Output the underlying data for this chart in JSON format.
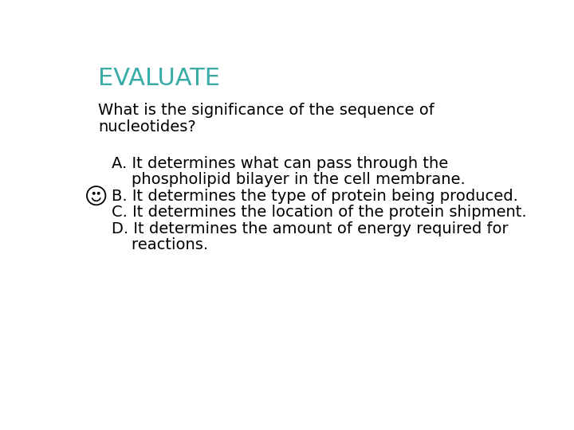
{
  "title": "EVALUATE",
  "title_color": "#3AACA8",
  "title_fontsize": 22,
  "background_color": "#ffffff",
  "question_line1": "What is the significance of the sequence of",
  "question_line2": "nucleotides?",
  "question_fontsize": 14,
  "question_color": "#000000",
  "answer_A_line1": "A. It determines what can pass through the",
  "answer_A_line2": "    phospholipid bilayer in the cell membrane.",
  "answer_B": "B. It determines the type of protein being produced.",
  "answer_C": "C. It determines the location of the protein shipment.",
  "answer_D_line1": "D. It determines the amount of energy required for",
  "answer_D_line2": "    reactions.",
  "answer_fontsize": 14,
  "answer_color": "#000000",
  "font": "Comic Sans MS",
  "smiley_color": "#000000"
}
